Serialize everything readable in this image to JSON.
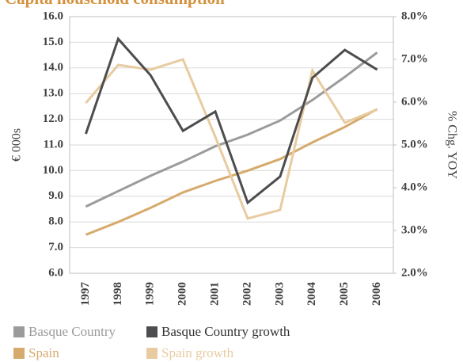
{
  "chart_data": {
    "type": "line",
    "title": "Capita household consumption",
    "y_label": "€ 000s",
    "y2_label": "% Chg. YOY",
    "categories": [
      "1997",
      "1998",
      "1999",
      "2000",
      "2001",
      "2002",
      "2003",
      "2004",
      "2005",
      "2006"
    ],
    "series": [
      {
        "name": "Basque Country",
        "color": "#9b9b9b",
        "values": [
          8.6,
          9.2,
          9.8,
          10.35,
          10.95,
          11.4,
          11.95,
          12.75,
          13.65,
          14.6
        ]
      },
      {
        "name": "Basque Country growth",
        "color": "#4d4d4f",
        "axis": "y2",
        "values": [
          5.26,
          7.48,
          6.63,
          5.33,
          5.78,
          3.65,
          4.26,
          6.57,
          7.22,
          6.76
        ]
      },
      {
        "name": "Spain",
        "color": "#d6aa6c",
        "values": [
          7.5,
          8.0,
          8.55,
          9.15,
          9.6,
          10.0,
          10.45,
          11.1,
          11.7,
          12.4
        ]
      },
      {
        "name": "Spain growth",
        "color": "#e8cba0",
        "axis": "y2",
        "values": [
          5.98,
          6.87,
          6.76,
          7.0,
          5.19,
          3.28,
          3.48,
          6.74,
          5.52,
          5.83
        ]
      }
    ],
    "ylim": [
      6,
      16
    ],
    "yticks": [
      {
        "value": 6,
        "label": "6.0"
      },
      {
        "value": 7,
        "label": "7.0"
      },
      {
        "value": 8,
        "label": "8.0"
      },
      {
        "value": 9,
        "label": "9.0"
      },
      {
        "value": 10,
        "label": "10.0"
      },
      {
        "value": 11,
        "label": "11.0"
      },
      {
        "value": 12,
        "label": "12.0"
      },
      {
        "value": 13,
        "label": "13.0"
      },
      {
        "value": 14,
        "label": "14.0"
      },
      {
        "value": 15,
        "label": "15.0"
      },
      {
        "value": 16,
        "label": "16.0"
      }
    ],
    "y2lim": [
      2,
      8
    ],
    "y2ticks": [
      {
        "value": 2,
        "label": "2.0%"
      },
      {
        "value": 3,
        "label": "3.0%"
      },
      {
        "value": 4,
        "label": "4.0%"
      },
      {
        "value": 5,
        "label": "5.0%"
      },
      {
        "value": 6,
        "label": "6.0%"
      },
      {
        "value": 7,
        "label": "7.0%"
      },
      {
        "value": 8,
        "label": "8.0%"
      }
    ],
    "grid": true,
    "title_color": "#d4913e"
  }
}
